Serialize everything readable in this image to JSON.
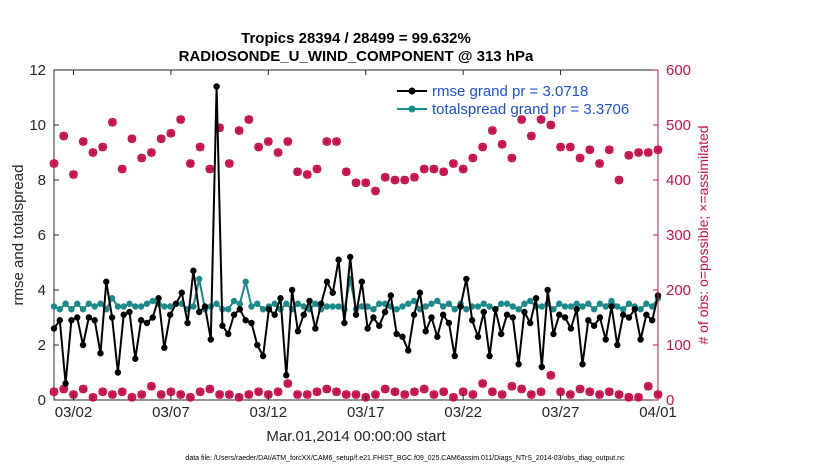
{
  "chart_data": {
    "type": "line",
    "title_line1": "Tropics 28394 / 28499 = 99.632%",
    "title_line2": "RADIOSONDE_U_WIND_COMPONENT @ 313 hPa",
    "xlabel": "Mar.01,2014 00:00:00 start",
    "ylabel_left": "rmse and totalspread",
    "ylabel_right": "# of obs: o=possible; ×=assimilated",
    "footer": "data file: /Users/raeder/DAI/ATM_forcXX/CAM6_setup/f.e21.FHIST_BGC.f09_025.CAM6assim.011/Diags_NTrS_2014-03/obs_diag_output.nc",
    "xlim": [
      0,
      31
    ],
    "ylim_left": [
      0,
      12
    ],
    "ylim_right": [
      0,
      600
    ],
    "x_ticks": [
      {
        "pos": 1,
        "label": "03/02"
      },
      {
        "pos": 6,
        "label": "03/07"
      },
      {
        "pos": 11,
        "label": "03/12"
      },
      {
        "pos": 16,
        "label": "03/17"
      },
      {
        "pos": 21,
        "label": "03/22"
      },
      {
        "pos": 26,
        "label": "03/27"
      },
      {
        "pos": 31,
        "label": "04/01"
      }
    ],
    "y_ticks_left": [
      0,
      2,
      4,
      6,
      8,
      10,
      12
    ],
    "y_ticks_right": [
      0,
      100,
      200,
      300,
      400,
      500,
      600
    ],
    "legend": [
      {
        "name": "rmse grand pr = 3.0718",
        "color": "#000000"
      },
      {
        "name": "totalspread grand pr = 3.3706",
        "color": "#1a8a8a"
      }
    ],
    "series": [
      {
        "name": "rmse",
        "color": "#000000",
        "values": [
          2.6,
          2.9,
          0.6,
          2.9,
          3.0,
          2.0,
          3.0,
          2.9,
          1.7,
          4.3,
          3.0,
          1.0,
          3.1,
          3.2,
          1.5,
          2.9,
          2.8,
          3.0,
          3.7,
          1.9,
          3.1,
          3.5,
          3.9,
          2.8,
          4.7,
          3.2,
          3.4,
          2.2,
          11.4,
          2.7,
          2.4,
          3.1,
          3.3,
          2.9,
          2.8,
          2.0,
          1.6,
          3.3,
          3.1,
          3.7,
          0.9,
          4.0,
          2.5,
          3.1,
          3.6,
          2.6,
          3.5,
          4.3,
          3.9,
          5.1,
          2.8,
          5.2,
          3.1,
          4.3,
          2.6,
          3.0,
          2.7,
          3.2,
          3.8,
          2.4,
          2.3,
          1.8,
          3.1,
          3.9,
          2.5,
          3.0,
          2.3,
          3.1,
          2.8,
          1.6,
          3.4,
          4.4,
          2.9,
          2.3,
          3.2,
          1.6,
          3.3,
          2.4,
          3.1,
          3.0,
          1.3,
          3.2,
          2.8,
          3.7,
          1.2,
          4.0,
          2.4,
          3.1,
          3.0,
          2.6,
          3.3,
          1.3,
          2.9,
          2.7,
          3.0,
          2.2,
          3.4,
          2.0,
          3.1,
          3.0,
          3.3,
          2.2,
          3.1,
          2.9,
          3.8
        ],
        "y_axis": "left"
      },
      {
        "name": "totalspread",
        "color": "#1a8a8a",
        "values": [
          3.4,
          3.3,
          3.5,
          3.3,
          3.5,
          3.3,
          3.5,
          3.4,
          3.5,
          3.3,
          3.7,
          3.4,
          3.4,
          3.5,
          3.4,
          3.4,
          3.5,
          3.6,
          3.5,
          3.4,
          3.4,
          3.5,
          3.5,
          3.3,
          3.4,
          4.4,
          3.3,
          3.4,
          3.5,
          3.3,
          3.3,
          3.6,
          3.5,
          4.3,
          3.4,
          3.5,
          3.3,
          3.4,
          3.5,
          3.3,
          3.5,
          3.3,
          3.5,
          3.4,
          3.3,
          3.5,
          3.3,
          3.4,
          3.4,
          3.4,
          3.3,
          4.4,
          3.3,
          3.4,
          3.4,
          3.3,
          3.5,
          3.5,
          3.4,
          3.3,
          3.4,
          3.5,
          3.6,
          3.3,
          3.4,
          3.5,
          3.6,
          3.4,
          3.5,
          3.3,
          3.5,
          3.3,
          3.4,
          3.4,
          3.5,
          3.4,
          3.3,
          3.5,
          3.5,
          3.4,
          3.3,
          3.5,
          3.6,
          3.4,
          3.4,
          3.5,
          3.3,
          3.5,
          3.4,
          3.4,
          3.5,
          3.4,
          3.5,
          3.3,
          3.5,
          3.4,
          3.6,
          3.4,
          3.3,
          3.5,
          3.4,
          3.3,
          3.5,
          3.4,
          3.7
        ]
      },
      {
        "name": "obs possible",
        "marker": "o",
        "color": "#c8104e",
        "x": [
          0,
          0.5,
          1,
          1.5,
          2,
          2.5,
          3,
          3.5,
          4,
          4.5,
          5,
          5.5,
          6,
          6.5,
          7,
          7.5,
          8,
          8.5,
          9,
          9.5,
          10,
          10.5,
          11,
          11.5,
          12,
          12.5,
          13,
          13.5,
          14,
          14.5,
          15,
          15.5,
          16,
          16.5,
          17,
          17.5,
          18,
          18.5,
          19,
          19.5,
          20,
          20.5,
          21,
          21.5,
          22,
          22.5,
          23,
          23.5,
          24,
          24.5,
          25,
          25.5,
          26,
          26.5,
          27,
          27.5,
          28,
          28.5,
          29,
          29.5,
          30,
          30.5,
          31
        ],
        "values": [
          430,
          480,
          410,
          470,
          450,
          460,
          505,
          420,
          475,
          440,
          450,
          475,
          485,
          510,
          430,
          460,
          420,
          495,
          430,
          490,
          510,
          460,
          470,
          450,
          470,
          415,
          410,
          420,
          470,
          470,
          415,
          395,
          395,
          380,
          405,
          400,
          400,
          405,
          420,
          420,
          415,
          430,
          420,
          440,
          460,
          490,
          465,
          440,
          510,
          480,
          510,
          500,
          460,
          460,
          440,
          455,
          430,
          455,
          400,
          445,
          450,
          450,
          455
        ],
        "y_axis": "right"
      },
      {
        "name": "obs assimilated",
        "marker": "x",
        "color": "#c8104e",
        "x": [
          0,
          0.5,
          1,
          1.5,
          2,
          2.5,
          3,
          3.5,
          4,
          4.5,
          5,
          5.5,
          6,
          6.5,
          7,
          7.5,
          8,
          8.5,
          9,
          9.5,
          10,
          10.5,
          11,
          11.5,
          12,
          12.5,
          13,
          13.5,
          14,
          14.5,
          15,
          15.5,
          16,
          16.5,
          17,
          17.5,
          18,
          18.5,
          19,
          19.5,
          20,
          20.5,
          21,
          21.5,
          22,
          22.5,
          23,
          23.5,
          24,
          24.5,
          25,
          25.5,
          26,
          26.5,
          27,
          27.5,
          28,
          28.5,
          29,
          29.5,
          30,
          30.5,
          31
        ],
        "values": [
          15,
          20,
          10,
          20,
          5,
          15,
          10,
          15,
          5,
          10,
          25,
          10,
          15,
          10,
          5,
          15,
          20,
          10,
          10,
          5,
          10,
          15,
          10,
          15,
          30,
          10,
          10,
          15,
          20,
          15,
          10,
          10,
          5,
          10,
          20,
          15,
          10,
          15,
          20,
          10,
          15,
          5,
          15,
          10,
          30,
          15,
          10,
          25,
          20,
          10,
          15,
          45,
          15,
          10,
          20,
          15,
          10,
          15,
          10,
          5,
          5,
          25,
          10
        ],
        "y_axis": "right"
      }
    ]
  }
}
